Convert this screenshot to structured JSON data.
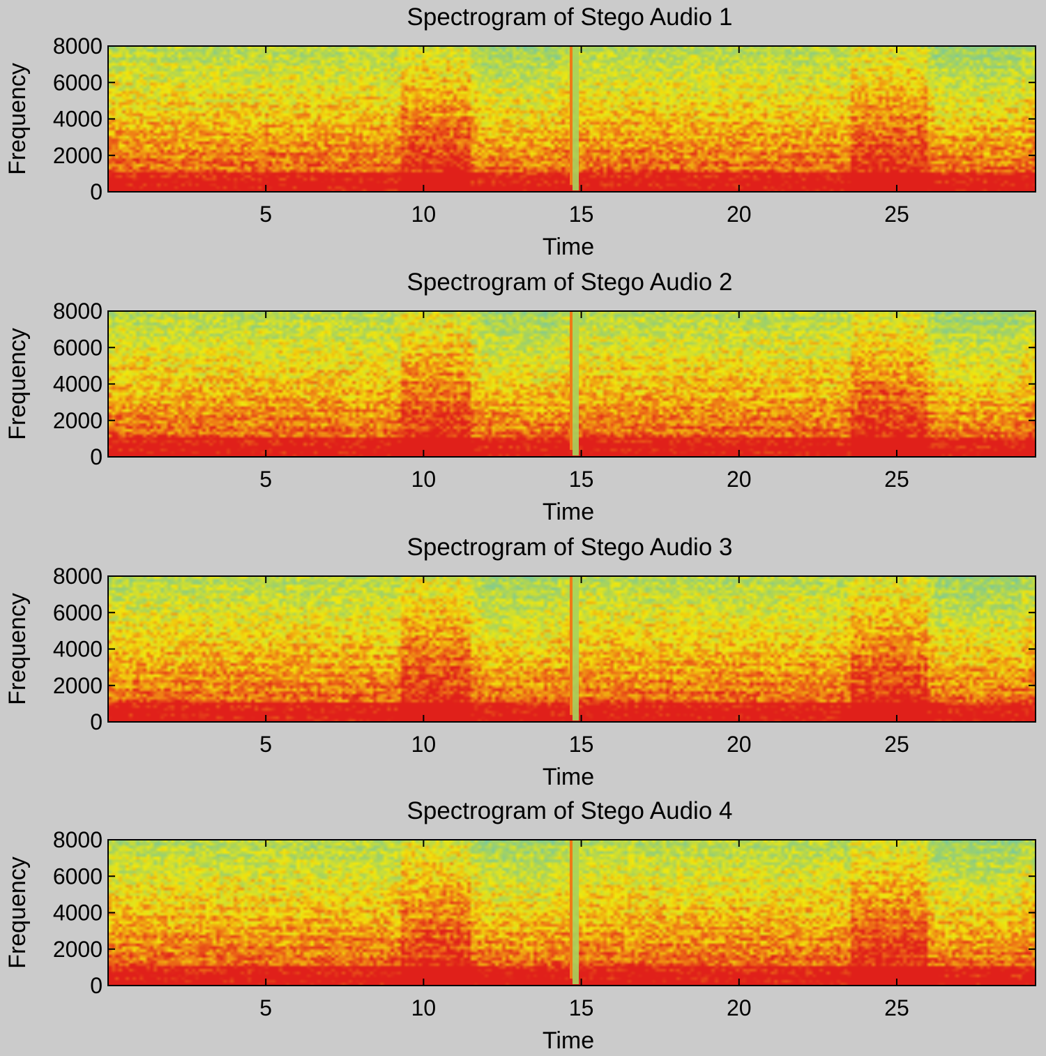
{
  "figure": {
    "background_color": "#cbcbcb"
  },
  "colormap": {
    "high": "#e0201a",
    "mid_high": "#ef7a16",
    "mid": "#f1e80c",
    "mid_low": "#a7d35e",
    "low": "#5ec3c0"
  },
  "chart_data": [
    {
      "type": "heatmap",
      "title": "Spectrogram of Stego Audio 1",
      "xlabel": "Time",
      "ylabel": "Frequency",
      "xlim": [
        0,
        29.4
      ],
      "ylim": [
        0,
        8000
      ],
      "xticks": [
        5,
        10,
        15,
        20,
        25
      ],
      "yticks": [
        0,
        2000,
        4000,
        6000,
        8000
      ],
      "transient_at_time": 14.7,
      "loud_regions_time": [
        [
          9.3,
          11.5
        ],
        [
          23.5,
          26.0
        ]
      ]
    },
    {
      "type": "heatmap",
      "title": "Spectrogram of Stego Audio 2",
      "xlabel": "Time",
      "ylabel": "Frequency",
      "xlim": [
        0,
        29.4
      ],
      "ylim": [
        0,
        8000
      ],
      "xticks": [
        5,
        10,
        15,
        20,
        25
      ],
      "yticks": [
        0,
        2000,
        4000,
        6000,
        8000
      ],
      "transient_at_time": 14.7,
      "loud_regions_time": [
        [
          9.3,
          11.5
        ],
        [
          23.5,
          26.0
        ]
      ]
    },
    {
      "type": "heatmap",
      "title": "Spectrogram of Stego Audio 3",
      "xlabel": "Time",
      "ylabel": "Frequency",
      "xlim": [
        0,
        29.4
      ],
      "ylim": [
        0,
        8000
      ],
      "xticks": [
        5,
        10,
        15,
        20,
        25
      ],
      "yticks": [
        0,
        2000,
        4000,
        6000,
        8000
      ],
      "transient_at_time": 14.7,
      "loud_regions_time": [
        [
          9.3,
          11.5
        ],
        [
          23.5,
          26.0
        ]
      ]
    },
    {
      "type": "heatmap",
      "title": "Spectrogram of Stego Audio 4",
      "xlabel": "Time",
      "ylabel": "Frequency",
      "xlim": [
        0,
        29.4
      ],
      "ylim": [
        0,
        8000
      ],
      "xticks": [
        5,
        10,
        15,
        20,
        25
      ],
      "yticks": [
        0,
        2000,
        4000,
        6000,
        8000
      ],
      "transient_at_time": 14.7,
      "loud_regions_time": [
        [
          9.3,
          11.5
        ],
        [
          23.5,
          26.0
        ]
      ]
    }
  ]
}
